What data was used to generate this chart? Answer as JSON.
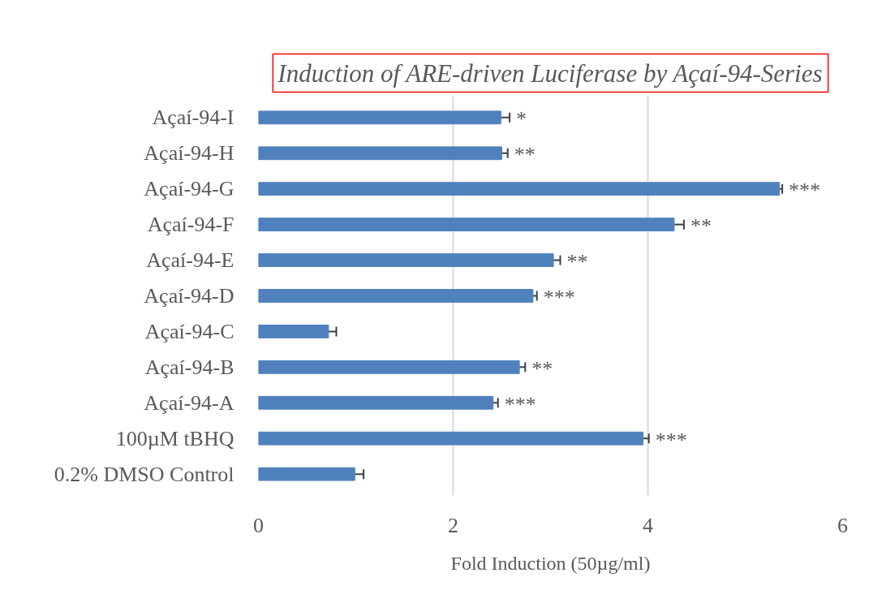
{
  "chart_data": {
    "type": "bar",
    "orientation": "horizontal",
    "title": "Induction of ARE-driven Luciferase by Açaí-94-Series",
    "xlabel": "Fold Induction (50µg/ml)",
    "categories": [
      "Açaí-94-I",
      "Açaí-94-H",
      "Açaí-94-G",
      "Açaí-94-F",
      "Açaí-94-E",
      "Açaí-94-D",
      "Açaí-94-C",
      "Açaí-94-B",
      "Açaí-94-A",
      "100µM tBHQ",
      "0.2% DMSO Control"
    ],
    "values": [
      2.49,
      2.5,
      5.35,
      4.27,
      3.03,
      2.82,
      0.72,
      2.68,
      2.41,
      3.95,
      0.99
    ],
    "errors": [
      [
        2.49,
        2.58
      ],
      [
        2.5,
        2.56
      ],
      [
        5.35,
        5.38
      ],
      [
        4.27,
        4.37
      ],
      [
        3.03,
        3.1
      ],
      [
        2.82,
        2.86
      ],
      [
        0.72,
        0.8
      ],
      [
        2.68,
        2.74
      ],
      [
        2.41,
        2.46
      ],
      [
        3.95,
        4.01
      ],
      [
        0.99,
        1.08
      ]
    ],
    "color": "#4f81bd",
    "xlim": [
      0,
      6
    ],
    "xticks": [
      0,
      2,
      4,
      6
    ],
    "grid": "x",
    "annotations": [
      {
        "text": "*",
        "x": 2.58,
        "y": "Açaí-94-I"
      },
      {
        "text": "**",
        "x": 2.56,
        "y": "Açaí-94-H"
      },
      {
        "text": "***",
        "x": 5.38,
        "y": "Açaí-94-G"
      },
      {
        "text": "**",
        "x": 4.37,
        "y": "Açaí-94-F"
      },
      {
        "text": "**",
        "x": 3.1,
        "y": "Açaí-94-E"
      },
      {
        "text": "***",
        "x": 2.86,
        "y": "Açaí-94-D"
      },
      {
        "text": "**",
        "x": 2.74,
        "y": "Açaí-94-B"
      },
      {
        "text": "***",
        "x": 2.46,
        "y": "Açaí-94-A"
      },
      {
        "text": "***",
        "x": 4.01,
        "y": "100µM tBHQ"
      }
    ]
  }
}
